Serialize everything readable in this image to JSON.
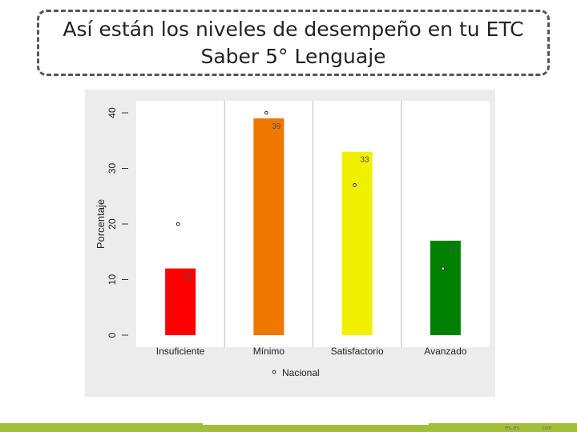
{
  "slide": {
    "title_line1": "Así están los niveles de desempeño en tu ETC",
    "title_line2": "Saber 5° Lenguaje",
    "footer_marks": [
      "es.es",
      "con"
    ]
  },
  "chart_data": {
    "type": "bar",
    "title": "Así están los niveles de desempeño en tu ETC Saber 5° Lenguaje",
    "xlabel": "",
    "ylabel": "Porcentaje",
    "ylim": [
      0,
      40
    ],
    "yticks": [
      0,
      10,
      20,
      30,
      40
    ],
    "categories": [
      "Insuficiente",
      "Mínimo",
      "Satisfactorio",
      "Avanzado"
    ],
    "series": [
      {
        "name": "ETC",
        "values": [
          12,
          39,
          33,
          17
        ],
        "value_labels": [
          "12",
          "39",
          "33",
          "17"
        ],
        "colors": [
          "#ff0000",
          "#f07800",
          "#f0f000",
          "#008000"
        ]
      },
      {
        "name": "Nacional",
        "values": [
          20,
          40,
          27,
          12
        ],
        "marker": "circle"
      }
    ],
    "legend": {
      "position": "bottom",
      "label": "Nacional"
    },
    "grid": false
  }
}
